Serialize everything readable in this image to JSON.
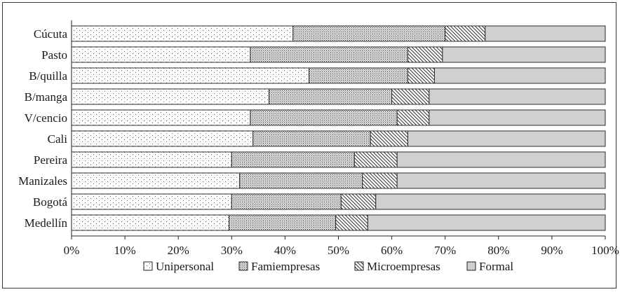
{
  "chart_data": {
    "type": "bar",
    "orientation": "horizontal",
    "stacked": true,
    "percent": true,
    "categories": [
      "Cúcuta",
      "Pasto",
      "B/quilla",
      "B/manga",
      "V/cencio",
      "Cali",
      "Pereira",
      "Manizales",
      "Bogotá",
      "Medellín"
    ],
    "series": [
      {
        "name": "Unipersonal",
        "values": [
          41.5,
          33.5,
          44.5,
          37.0,
          33.5,
          34.0,
          30.0,
          31.5,
          30.0,
          29.5
        ],
        "pattern": "dots"
      },
      {
        "name": "Famiempresas",
        "values": [
          28.5,
          29.5,
          18.5,
          23.0,
          27.5,
          22.0,
          23.0,
          23.0,
          20.5,
          20.0
        ],
        "pattern": "dense-dots"
      },
      {
        "name": "Microempresas",
        "values": [
          7.5,
          6.5,
          5.0,
          7.0,
          6.0,
          7.0,
          8.0,
          6.5,
          6.5,
          6.0
        ],
        "pattern": "diagonal-hatch"
      },
      {
        "name": "Formal",
        "values": [
          22.5,
          30.5,
          32.0,
          33.0,
          33.0,
          37.0,
          39.0,
          39.0,
          43.0,
          44.5
        ],
        "pattern": "solid-gray"
      }
    ],
    "xlim": [
      0,
      100
    ],
    "x_ticks": [
      "0%",
      "10%",
      "20%",
      "30%",
      "40%",
      "50%",
      "60%",
      "70%",
      "80%",
      "90%",
      "100%"
    ],
    "title": "",
    "xlabel": "",
    "ylabel": "",
    "grid": false,
    "legend_position": "bottom"
  }
}
